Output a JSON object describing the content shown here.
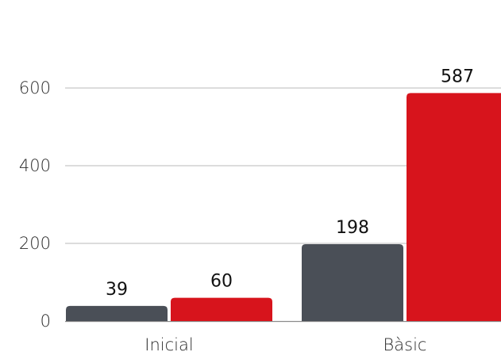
{
  "chart_data": {
    "type": "bar",
    "categories": [
      "Inicial",
      "Bàsic"
    ],
    "series": [
      {
        "values": [
          39,
          198
        ],
        "color": "#4a4f57"
      },
      {
        "values": [
          60,
          587
        ],
        "color": "#d7141c"
      }
    ],
    "yticks": [
      "0",
      "200",
      "400",
      "600"
    ],
    "ylim": [
      0,
      600
    ],
    "grid": true,
    "legend": "none",
    "title": "",
    "xlabel": "",
    "ylabel": ""
  }
}
